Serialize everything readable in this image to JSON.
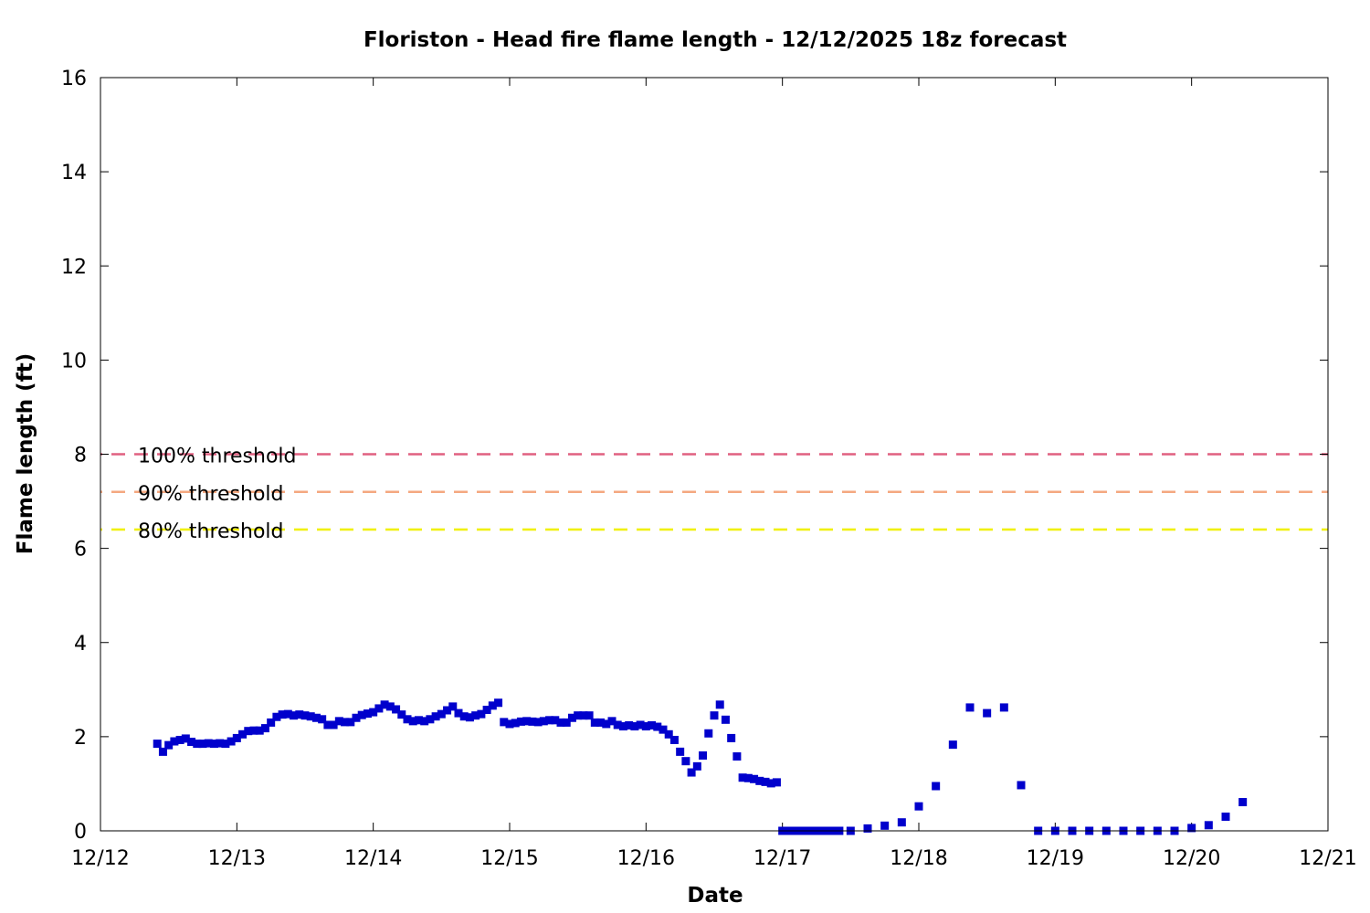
{
  "chart_data": {
    "type": "scatter",
    "title": "Floriston - Head fire flame length - 12/12/2025 18z forecast",
    "xlabel": "Date",
    "ylabel": "Flame length (ft)",
    "x_unit": "days",
    "xlim": [
      "12/12",
      "12/21"
    ],
    "ylim": [
      0,
      16
    ],
    "x_ticks": [
      "12/12",
      "12/13",
      "12/14",
      "12/15",
      "12/16",
      "12/17",
      "12/18",
      "12/19",
      "12/20",
      "12/21"
    ],
    "y_ticks": [
      "0",
      "2",
      "4",
      "6",
      "8",
      "10",
      "12",
      "14",
      "16"
    ],
    "grid": false,
    "marker_color": "#0000cc",
    "thresholds": [
      {
        "label": "100% threshold",
        "value": 8.0,
        "color": "#e06080"
      },
      {
        "label": "90% threshold",
        "value": 7.2,
        "color": "#f4a880"
      },
      {
        "label": "80% threshold",
        "value": 6.4,
        "color": "#f0f000"
      }
    ],
    "series": [
      {
        "points": [
          [
            "12/12 10:00",
            1.85
          ],
          [
            "12/12 11:00",
            1.68
          ],
          [
            "12/12 12:00",
            1.82
          ],
          [
            "12/12 13:00",
            1.9
          ],
          [
            "12/12 14:00",
            1.93
          ],
          [
            "12/12 15:00",
            1.96
          ],
          [
            "12/12 16:00",
            1.89
          ],
          [
            "12/12 17:00",
            1.85
          ],
          [
            "12/12 18:00",
            1.85
          ],
          [
            "12/12 19:00",
            1.86
          ],
          [
            "12/12 20:00",
            1.85
          ],
          [
            "12/12 21:00",
            1.86
          ],
          [
            "12/12 22:00",
            1.85
          ],
          [
            "12/12 23:00",
            1.9
          ],
          [
            "12/13 00:00",
            1.97
          ],
          [
            "12/13 01:00",
            2.05
          ],
          [
            "12/13 02:00",
            2.12
          ],
          [
            "12/13 03:00",
            2.13
          ],
          [
            "12/13 04:00",
            2.13
          ],
          [
            "12/13 05:00",
            2.18
          ],
          [
            "12/13 06:00",
            2.3
          ],
          [
            "12/13 07:00",
            2.42
          ],
          [
            "12/13 08:00",
            2.47
          ],
          [
            "12/13 09:00",
            2.48
          ],
          [
            "12/13 10:00",
            2.45
          ],
          [
            "12/13 11:00",
            2.47
          ],
          [
            "12/13 12:00",
            2.45
          ],
          [
            "12/13 13:00",
            2.43
          ],
          [
            "12/13 14:00",
            2.4
          ],
          [
            "12/13 15:00",
            2.37
          ],
          [
            "12/13 16:00",
            2.25
          ],
          [
            "12/13 17:00",
            2.25
          ],
          [
            "12/13 18:00",
            2.33
          ],
          [
            "12/13 19:00",
            2.31
          ],
          [
            "12/13 20:00",
            2.31
          ],
          [
            "12/13 21:00",
            2.4
          ],
          [
            "12/13 22:00",
            2.46
          ],
          [
            "12/13 23:00",
            2.49
          ],
          [
            "12/14 00:00",
            2.52
          ],
          [
            "12/14 01:00",
            2.6
          ],
          [
            "12/14 02:00",
            2.68
          ],
          [
            "12/14 03:00",
            2.64
          ],
          [
            "12/14 04:00",
            2.58
          ],
          [
            "12/14 05:00",
            2.47
          ],
          [
            "12/14 06:00",
            2.37
          ],
          [
            "12/14 07:00",
            2.33
          ],
          [
            "12/14 08:00",
            2.35
          ],
          [
            "12/14 09:00",
            2.33
          ],
          [
            "12/14 10:00",
            2.37
          ],
          [
            "12/14 11:00",
            2.43
          ],
          [
            "12/14 12:00",
            2.48
          ],
          [
            "12/14 13:00",
            2.56
          ],
          [
            "12/14 14:00",
            2.64
          ],
          [
            "12/14 15:00",
            2.5
          ],
          [
            "12/14 16:00",
            2.43
          ],
          [
            "12/14 17:00",
            2.41
          ],
          [
            "12/14 18:00",
            2.45
          ],
          [
            "12/14 19:00",
            2.48
          ],
          [
            "12/14 20:00",
            2.57
          ],
          [
            "12/14 21:00",
            2.66
          ],
          [
            "12/14 22:00",
            2.72
          ],
          [
            "12/14 23:00",
            2.31
          ],
          [
            "12/15 00:00",
            2.27
          ],
          [
            "12/15 01:00",
            2.29
          ],
          [
            "12/15 02:00",
            2.32
          ],
          [
            "12/15 03:00",
            2.33
          ],
          [
            "12/15 04:00",
            2.32
          ],
          [
            "12/15 05:00",
            2.31
          ],
          [
            "12/15 06:00",
            2.33
          ],
          [
            "12/15 07:00",
            2.35
          ],
          [
            "12/15 08:00",
            2.35
          ],
          [
            "12/15 09:00",
            2.3
          ],
          [
            "12/15 10:00",
            2.3
          ],
          [
            "12/15 11:00",
            2.4
          ],
          [
            "12/15 12:00",
            2.45
          ],
          [
            "12/15 13:00",
            2.45
          ],
          [
            "12/15 14:00",
            2.45
          ],
          [
            "12/15 15:00",
            2.3
          ],
          [
            "12/15 16:00",
            2.3
          ],
          [
            "12/15 17:00",
            2.27
          ],
          [
            "12/15 18:00",
            2.33
          ],
          [
            "12/15 19:00",
            2.25
          ],
          [
            "12/15 20:00",
            2.22
          ],
          [
            "12/15 21:00",
            2.24
          ],
          [
            "12/15 22:00",
            2.22
          ],
          [
            "12/15 23:00",
            2.25
          ],
          [
            "12/16 00:00",
            2.22
          ],
          [
            "12/16 01:00",
            2.24
          ],
          [
            "12/16 02:00",
            2.21
          ],
          [
            "12/16 03:00",
            2.15
          ],
          [
            "12/16 04:00",
            2.05
          ],
          [
            "12/16 05:00",
            1.93
          ],
          [
            "12/16 06:00",
            1.68
          ],
          [
            "12/16 07:00",
            1.48
          ],
          [
            "12/16 08:00",
            1.24
          ],
          [
            "12/16 09:00",
            1.37
          ],
          [
            "12/16 10:00",
            1.6
          ],
          [
            "12/16 11:00",
            2.07
          ],
          [
            "12/16 12:00",
            2.45
          ],
          [
            "12/16 13:00",
            2.68
          ],
          [
            "12/16 14:00",
            2.36
          ],
          [
            "12/16 15:00",
            1.97
          ],
          [
            "12/16 16:00",
            1.58
          ],
          [
            "12/16 17:00",
            1.13
          ],
          [
            "12/16 18:00",
            1.12
          ],
          [
            "12/16 19:00",
            1.1
          ],
          [
            "12/16 20:00",
            1.06
          ],
          [
            "12/16 21:00",
            1.04
          ],
          [
            "12/16 22:00",
            1.01
          ],
          [
            "12/16 23:00",
            1.03
          ],
          [
            "12/17 00:00",
            0.0
          ],
          [
            "12/17 01:00",
            0.0
          ],
          [
            "12/17 02:00",
            0.0
          ],
          [
            "12/17 03:00",
            0.0
          ],
          [
            "12/17 04:00",
            0.0
          ],
          [
            "12/17 05:00",
            0.0
          ],
          [
            "12/17 06:00",
            0.0
          ],
          [
            "12/17 07:00",
            0.0
          ],
          [
            "12/17 08:00",
            0.0
          ],
          [
            "12/17 09:00",
            0.0
          ],
          [
            "12/17 10:00",
            0.0
          ],
          [
            "12/17 12:00",
            0.0
          ],
          [
            "12/17 15:00",
            0.05
          ],
          [
            "12/17 18:00",
            0.11
          ],
          [
            "12/17 21:00",
            0.18
          ],
          [
            "12/18 00:00",
            0.52
          ],
          [
            "12/18 03:00",
            0.95
          ],
          [
            "12/18 06:00",
            1.83
          ],
          [
            "12/18 09:00",
            2.62
          ],
          [
            "12/18 12:00",
            2.5
          ],
          [
            "12/18 15:00",
            2.62
          ],
          [
            "12/18 18:00",
            0.97
          ],
          [
            "12/18 21:00",
            0.0
          ],
          [
            "12/19 00:00",
            0.0
          ],
          [
            "12/19 03:00",
            0.0
          ],
          [
            "12/19 06:00",
            0.0
          ],
          [
            "12/19 09:00",
            0.0
          ],
          [
            "12/19 12:00",
            0.0
          ],
          [
            "12/19 15:00",
            0.0
          ],
          [
            "12/19 18:00",
            0.0
          ],
          [
            "12/19 21:00",
            0.0
          ],
          [
            "12/20 00:00",
            0.06
          ],
          [
            "12/20 03:00",
            0.12
          ],
          [
            "12/20 06:00",
            0.3
          ],
          [
            "12/20 09:00",
            0.61
          ]
        ]
      }
    ]
  }
}
